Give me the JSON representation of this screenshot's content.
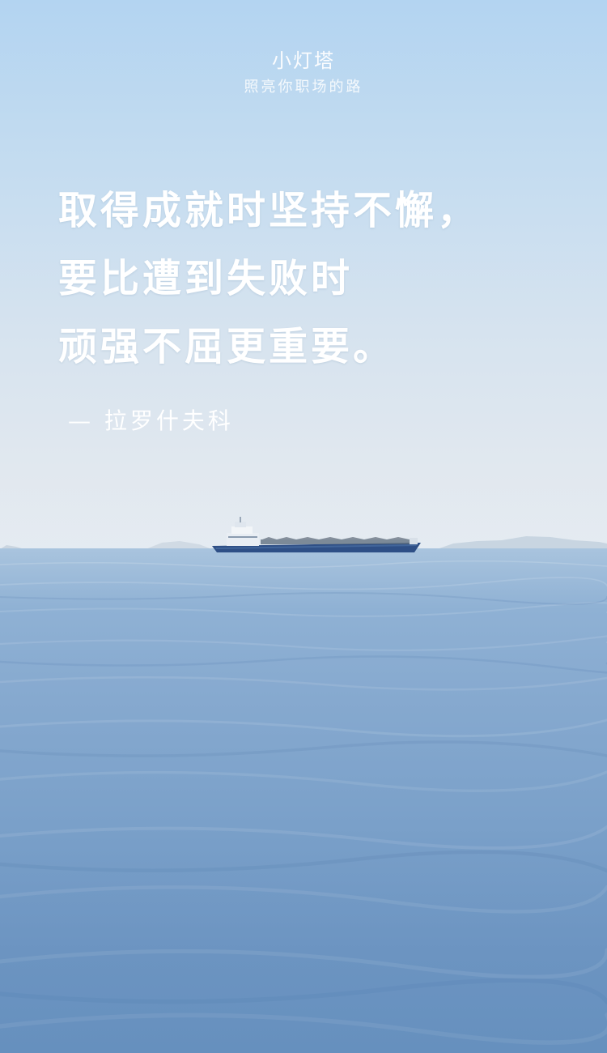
{
  "brand": {
    "name": "小灯塔",
    "slogan": "照亮你职场的路"
  },
  "quote": {
    "lines": [
      "取得成就时坚持不懈，",
      "要比遭到失败时",
      "顽强不屈更重要。"
    ],
    "attribution": "— 拉罗什夫科"
  },
  "colors": {
    "sky_top": "#b3d4f1",
    "sky_horizon": "#e4eaf0",
    "sea_near": "#6690be",
    "sea_far": "#a9c4de",
    "text": "#ffffff",
    "ship_hull": "#2e4f86"
  }
}
